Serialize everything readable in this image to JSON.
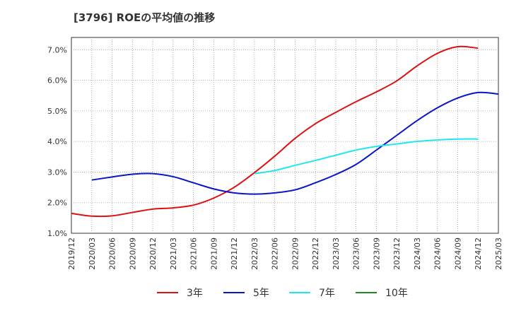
{
  "chart_data": {
    "type": "line",
    "title": "[3796]  ROEの平均値の推移",
    "xlabel": "",
    "ylabel": "",
    "ylim": [
      1.0,
      7.4
    ],
    "grid": true,
    "legend_position": "bottom",
    "y_ticks": [
      1.0,
      2.0,
      3.0,
      4.0,
      5.0,
      6.0,
      7.0
    ],
    "y_tick_labels": [
      "1.0%",
      "2.0%",
      "3.0%",
      "4.0%",
      "5.0%",
      "6.0%",
      "7.0%"
    ],
    "x_tick_labels": [
      "2019/12",
      "2020/03",
      "2020/06",
      "2020/09",
      "2020/12",
      "2021/03",
      "2021/06",
      "2021/09",
      "2021/12",
      "2022/03",
      "2022/06",
      "2022/09",
      "2022/12",
      "2023/03",
      "2023/06",
      "2023/09",
      "2023/12",
      "2024/03",
      "2024/06",
      "2024/09",
      "2024/12",
      "2025/03"
    ],
    "series": [
      {
        "name": "3年",
        "color": "#dd1111",
        "start_index": 0,
        "values": [
          1.65,
          1.56,
          1.57,
          1.68,
          1.79,
          1.83,
          1.92,
          2.15,
          2.5,
          2.98,
          3.52,
          4.1,
          4.58,
          4.95,
          5.3,
          5.62,
          5.98,
          6.47,
          6.88,
          7.1,
          7.05
        ]
      },
      {
        "name": "5年",
        "color": "#0a14c8",
        "start_index": 1,
        "values": [
          2.74,
          2.84,
          2.93,
          2.95,
          2.85,
          2.65,
          2.45,
          2.32,
          2.28,
          2.32,
          2.42,
          2.65,
          2.92,
          3.25,
          3.72,
          4.2,
          4.68,
          5.1,
          5.42,
          5.6,
          5.55
        ]
      },
      {
        "name": "7年",
        "color": "#22e6ee",
        "start_index": 9,
        "values": [
          2.95,
          3.05,
          3.22,
          3.38,
          3.55,
          3.72,
          3.84,
          3.92,
          4.0,
          4.05,
          4.08,
          4.08
        ]
      },
      {
        "name": "10年",
        "color": "#228822",
        "start_index": 21,
        "values": []
      }
    ]
  }
}
